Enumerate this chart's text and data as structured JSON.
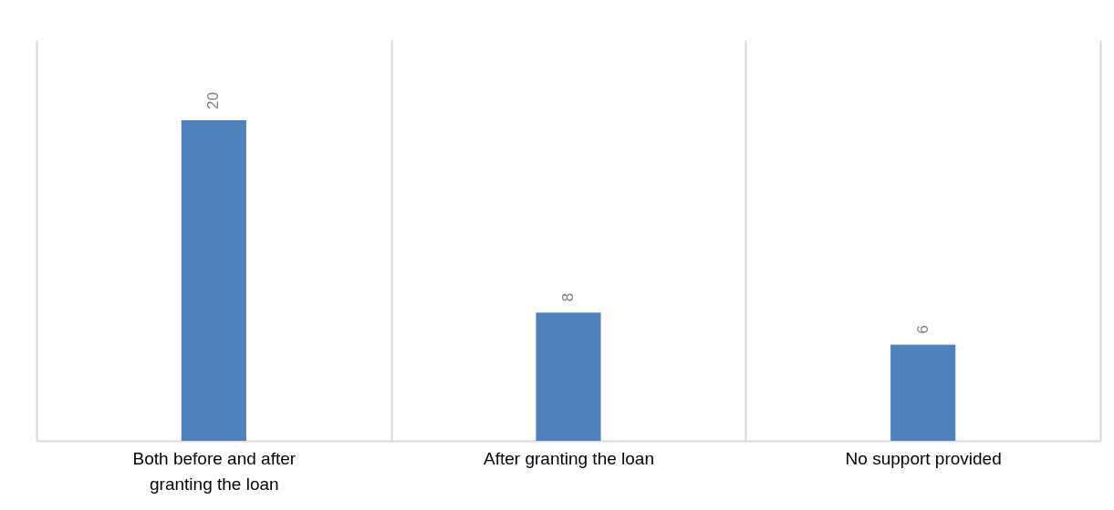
{
  "chart_data": {
    "type": "bar",
    "categories": [
      "Both before and after granting the loan",
      "After granting the loan",
      "No support provided"
    ],
    "values": [
      20,
      8,
      6
    ],
    "color": "#4f81bd",
    "ylim": [
      0,
      25
    ],
    "data_labels": true,
    "grid": "x",
    "tick_labels": "x"
  }
}
